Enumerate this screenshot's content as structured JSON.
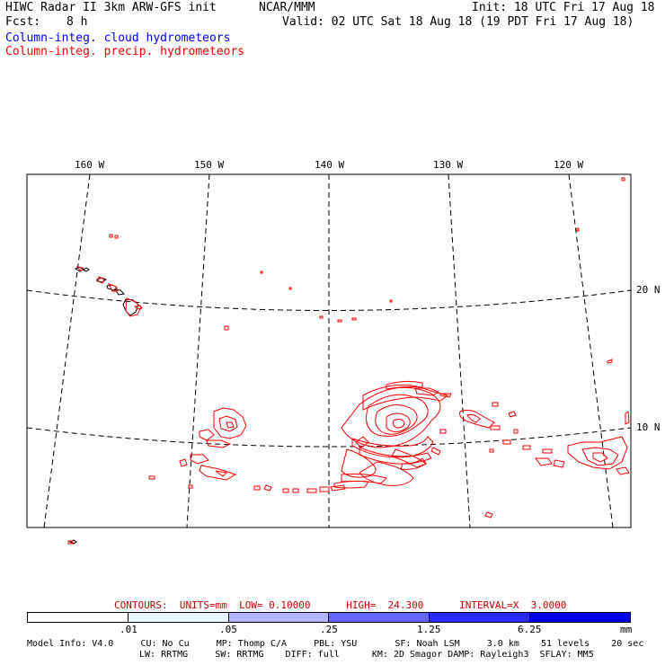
{
  "header": {
    "line1_left": "HIWC Radar II 3km ARW-GFS init",
    "line1_mid": "NCAR/MMM",
    "line1_right": "Init: 18 UTC Fri 17 Aug 18",
    "line2_left": "Fcst:",
    "line2_left_val": "8 h",
    "line2_right": "Valid: 02 UTC Sat 18 Aug 18 (19 PDT Fri 17 Aug 18)",
    "legend_cloud": "Column-integ. cloud hydrometeors",
    "legend_precip": "Column-integ. precip. hydrometeors",
    "legend_cloud_color": "#0000ff",
    "legend_precip_color": "#ff0000"
  },
  "map": {
    "lon_labels": [
      "160 W",
      "150 W",
      "140 W",
      "130 W",
      "120 W"
    ],
    "lat_labels": [
      "20 N",
      "10 N"
    ],
    "contour_color": "#ff0000",
    "coast_color": "#000000"
  },
  "contours_info": {
    "text": "CONTOURS:  UNITS=mm  LOW= 0.10000      HIGH=  24.300      INTERVAL=X  3.0000",
    "color": "#cc0000"
  },
  "colorbar": {
    "tick_labels": [
      ".01",
      ".05",
      ".25",
      "1.25",
      "6.25"
    ],
    "units": "mm",
    "colors": [
      "#ffffff",
      "#e8f6ff",
      "#b4b4ff",
      "#6464ff",
      "#2a2aff",
      "#0000e6"
    ]
  },
  "model_info": {
    "line1": "Model Info: V4.0     CU: No Cu     MP: Thomp C/A     PBL: YSU       SF: Noah LSM     3.0 km    51 levels    20 sec",
    "line2": "LW: RRTMG     SW: RRTMG    DIFF: full      KM: 2D Smagor DAMP: Rayleigh3  SFLAY: MM5"
  }
}
